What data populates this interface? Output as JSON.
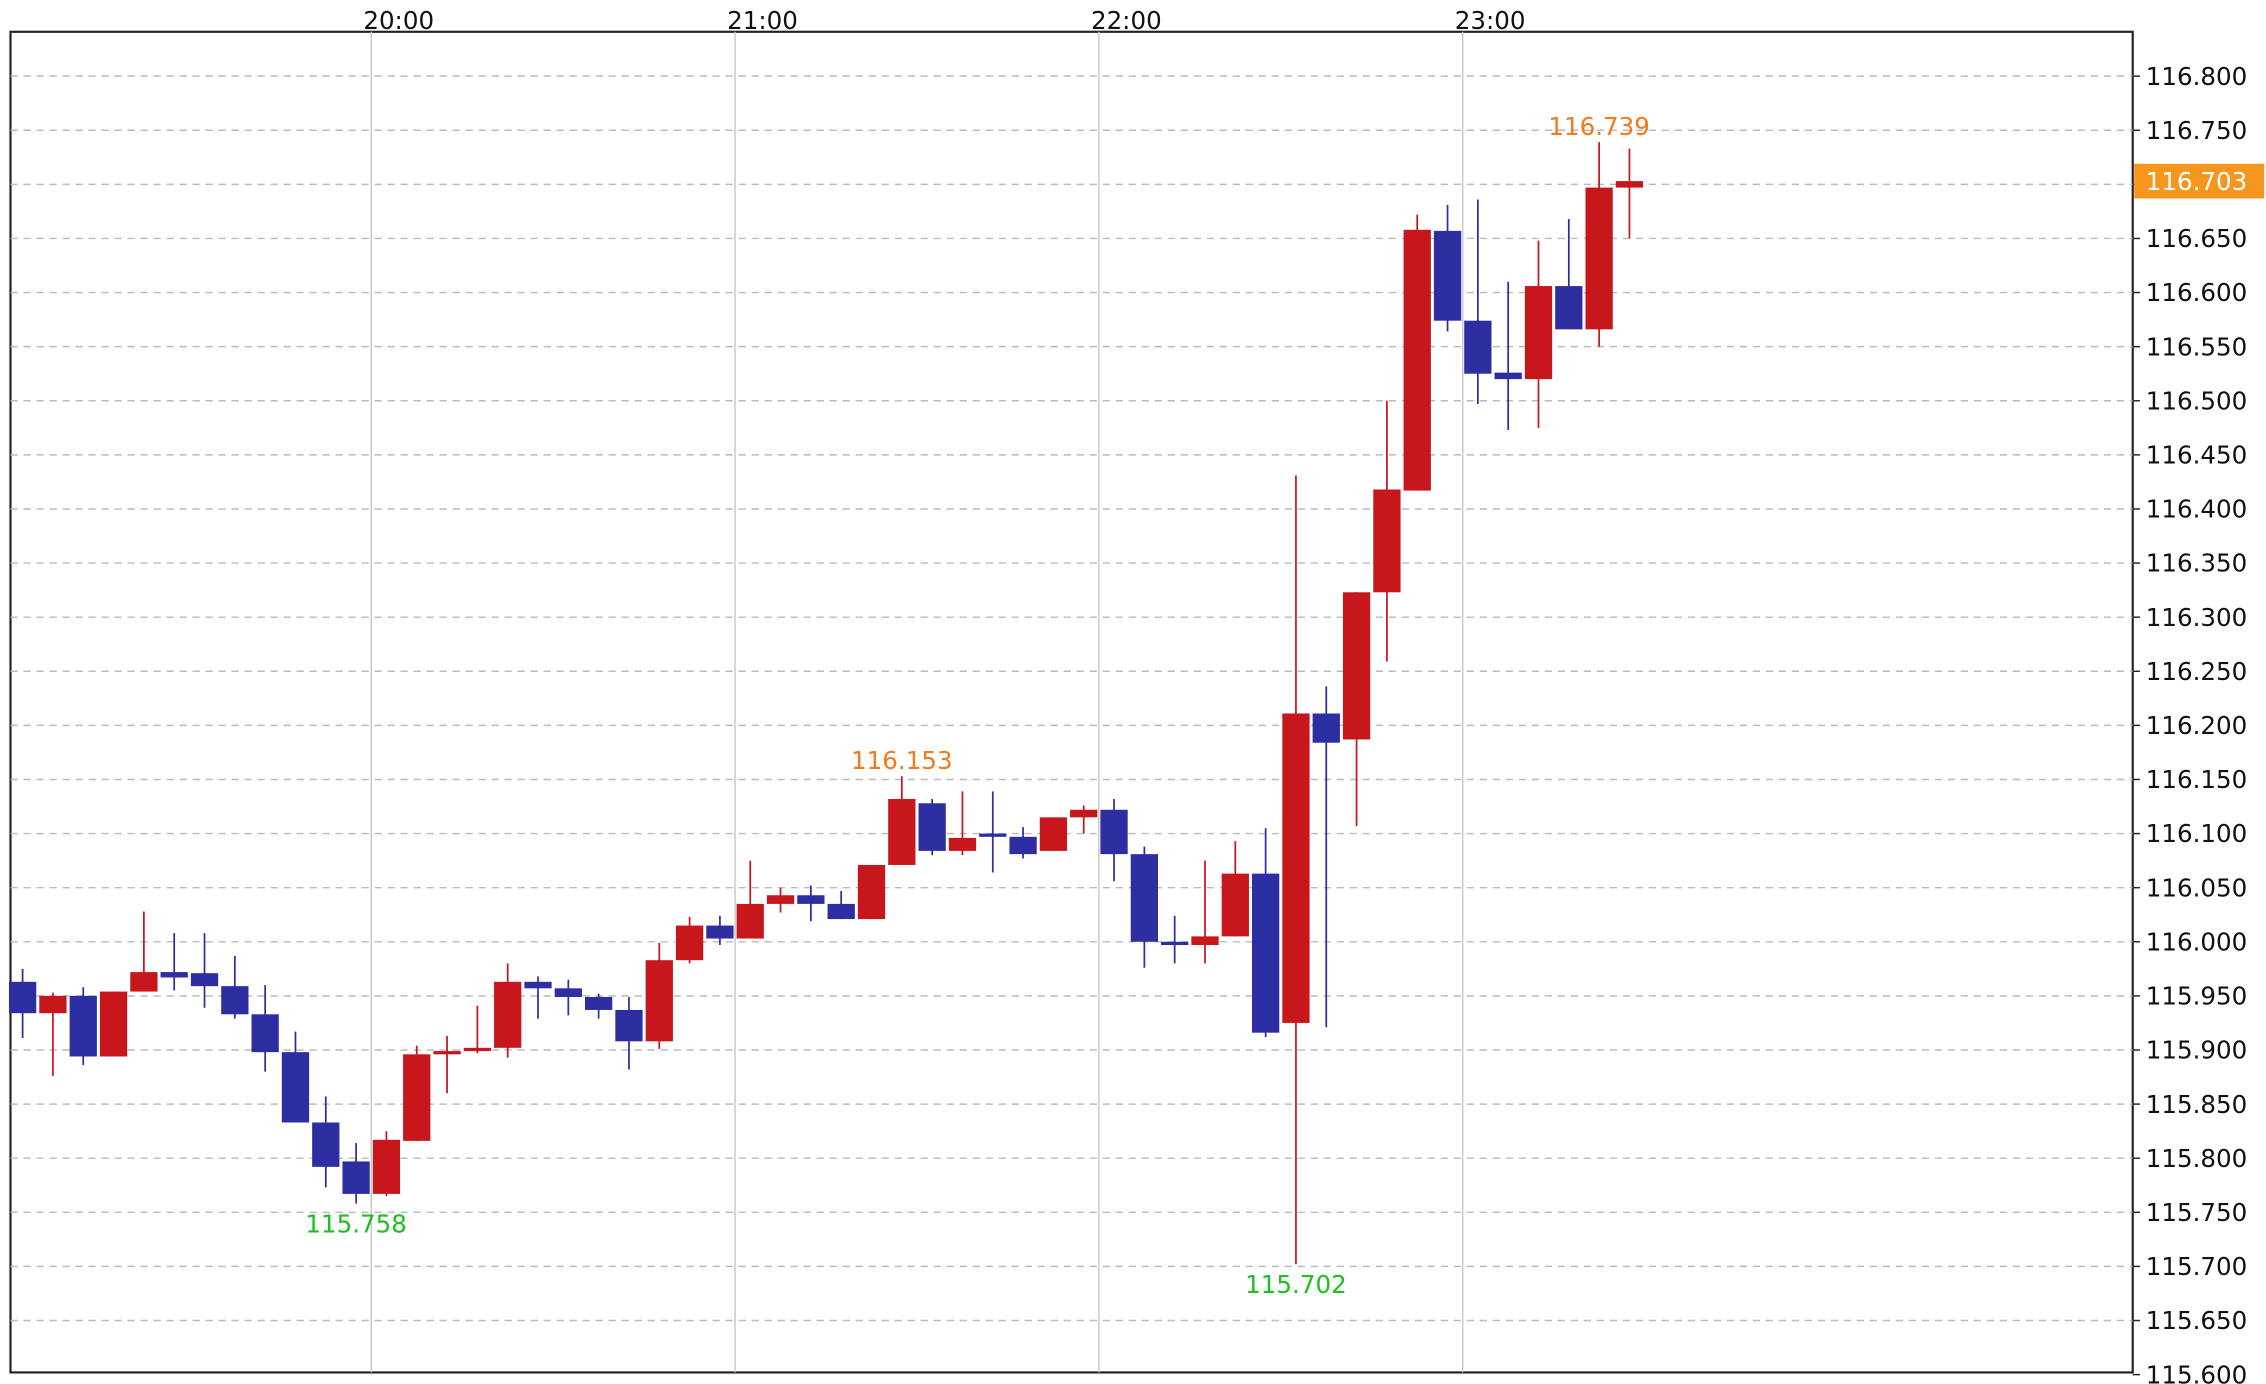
{
  "chart_data": {
    "type": "candlestick",
    "up_color": "#c8171c",
    "down_color": "#2e2ea3",
    "grid": true,
    "ylim": [
      115.602,
      116.841
    ],
    "yticks": [
      {
        "value": 115.6,
        "label": "115.600"
      },
      {
        "value": 115.65,
        "label": "115.650"
      },
      {
        "value": 115.7,
        "label": "115.700"
      },
      {
        "value": 115.75,
        "label": "115.750"
      },
      {
        "value": 115.8,
        "label": "115.800"
      },
      {
        "value": 115.85,
        "label": "115.850"
      },
      {
        "value": 115.9,
        "label": "115.900"
      },
      {
        "value": 115.95,
        "label": "115.950"
      },
      {
        "value": 116.0,
        "label": "116.000"
      },
      {
        "value": 116.05,
        "label": "116.050"
      },
      {
        "value": 116.1,
        "label": "116.100"
      },
      {
        "value": 116.15,
        "label": "116.150"
      },
      {
        "value": 116.2,
        "label": "116.200"
      },
      {
        "value": 116.25,
        "label": "116.250"
      },
      {
        "value": 116.3,
        "label": "116.300"
      },
      {
        "value": 116.35,
        "label": "116.350"
      },
      {
        "value": 116.4,
        "label": "116.400"
      },
      {
        "value": 116.45,
        "label": "116.450"
      },
      {
        "value": 116.5,
        "label": "116.500"
      },
      {
        "value": 116.55,
        "label": "116.550"
      },
      {
        "value": 116.6,
        "label": "116.600"
      },
      {
        "value": 116.65,
        "label": "116.650"
      },
      {
        "value": 116.7,
        "label": "116.700"
      },
      {
        "value": 116.75,
        "label": "116.750"
      },
      {
        "value": 116.8,
        "label": "116.800"
      }
    ],
    "xlim": [
      -0.4,
      69.6
    ],
    "xticks": [
      {
        "value": 11.5,
        "label": "20:00"
      },
      {
        "value": 23.5,
        "label": "21:00"
      },
      {
        "value": 35.5,
        "label": "22:00"
      },
      {
        "value": 47.5,
        "label": "23:00"
      }
    ],
    "open": [
      115.963,
      115.934,
      115.95,
      115.894,
      115.954,
      115.972,
      115.971,
      115.959,
      115.933,
      115.898,
      115.833,
      115.797,
      115.767,
      115.816,
      115.896,
      115.899,
      115.902,
      115.963,
      115.957,
      115.949,
      115.937,
      115.908,
      115.983,
      116.015,
      116.003,
      116.035,
      116.043,
      116.035,
      116.021,
      116.071,
      116.128,
      116.084,
      116.1,
      116.097,
      116.084,
      116.115,
      116.122,
      116.081,
      116.0,
      115.997,
      116.005,
      116.063,
      115.925,
      116.211,
      116.187,
      116.323,
      116.417,
      116.657,
      116.574,
      116.526,
      116.52,
      116.606,
      116.566,
      116.697
    ],
    "high": [
      115.975,
      115.953,
      115.958,
      115.954,
      116.028,
      116.008,
      116.008,
      115.987,
      115.96,
      115.917,
      115.857,
      115.814,
      115.825,
      115.904,
      115.913,
      115.941,
      115.98,
      115.968,
      115.965,
      115.952,
      115.949,
      115.999,
      116.023,
      116.024,
      116.075,
      116.05,
      116.052,
      116.047,
      116.071,
      116.153,
      116.132,
      116.139,
      116.139,
      116.106,
      116.115,
      116.126,
      116.132,
      116.088,
      116.024,
      116.075,
      116.093,
      116.105,
      116.431,
      116.236,
      116.323,
      116.5,
      116.672,
      116.681,
      116.686,
      116.61,
      116.648,
      116.668,
      116.739,
      116.733
    ],
    "low": [
      115.911,
      115.876,
      115.886,
      115.894,
      115.954,
      115.955,
      115.939,
      115.929,
      115.88,
      115.833,
      115.773,
      115.758,
      115.765,
      115.816,
      115.86,
      115.897,
      115.893,
      115.929,
      115.932,
      115.929,
      115.882,
      115.901,
      115.98,
      115.997,
      116.003,
      116.027,
      116.019,
      116.021,
      116.021,
      116.071,
      116.08,
      116.08,
      116.064,
      116.077,
      116.084,
      116.1,
      116.056,
      115.976,
      115.98,
      115.98,
      116.005,
      115.912,
      115.702,
      115.921,
      116.107,
      116.259,
      116.417,
      116.564,
      116.497,
      116.473,
      116.475,
      116.566,
      116.55,
      116.65
    ],
    "close": [
      115.934,
      115.95,
      115.894,
      115.954,
      115.972,
      115.967,
      115.959,
      115.933,
      115.898,
      115.833,
      115.792,
      115.767,
      115.817,
      115.896,
      115.899,
      115.902,
      115.963,
      115.957,
      115.949,
      115.937,
      115.908,
      115.983,
      116.015,
      116.003,
      116.035,
      116.043,
      116.035,
      116.021,
      116.071,
      116.132,
      116.084,
      116.096,
      116.097,
      116.081,
      116.115,
      116.122,
      116.081,
      116.0,
      115.997,
      116.005,
      116.063,
      115.916,
      116.211,
      116.184,
      116.323,
      116.418,
      116.658,
      116.574,
      116.525,
      116.52,
      116.606,
      116.566,
      116.697,
      116.703
    ],
    "annotations": [
      {
        "value": 116.739,
        "label": "116.739",
        "at": "high",
        "color": "#f07a1c"
      },
      {
        "value": 116.153,
        "label": "116.153",
        "at": "high",
        "color": "#f07a1c"
      },
      {
        "value": 115.758,
        "label": "115.758",
        "at": "low",
        "color": "#1fbf1f"
      },
      {
        "value": 115.702,
        "label": "115.702",
        "at": "low",
        "color": "#1fbf1f"
      }
    ],
    "last_price": {
      "value": 116.703,
      "label": "116.703",
      "color": "#f7961e"
    }
  }
}
